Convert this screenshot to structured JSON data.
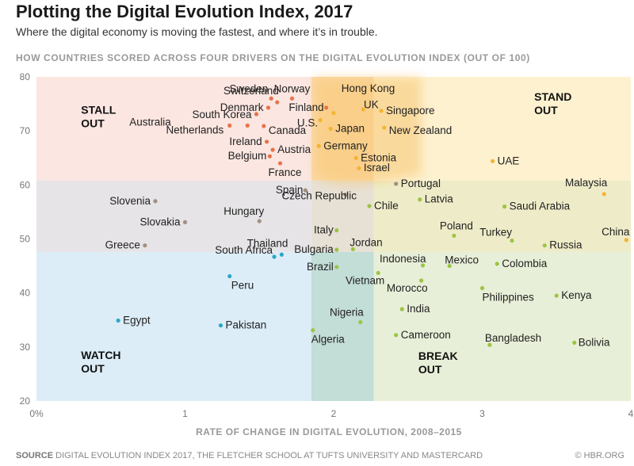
{
  "header": {
    "title": "Plotting the Digital Evolution Index, 2017",
    "subtitle": "Where the digital economy is moving the fastest, and where it’s in trouble."
  },
  "footer": {
    "source_label": "SOURCE",
    "source_text": "DIGITAL EVOLUTION INDEX 2017, THE FLETCHER SCHOOL AT TUFTS UNIVERSITY AND MASTERCARD",
    "credit": "© HBR.ORG"
  },
  "colors": {
    "stall_out": "#e8734a",
    "stand_out": "#f5b335",
    "break_out": "#9cc444",
    "watch_out": "#27a9c6",
    "transition": "#a09080",
    "stall_out_bg": "#fbe6e1",
    "stand_out_bg": "#fdf1cf",
    "break_out_bg": "#e8efd8",
    "watch_out_bg": "#dcedf8",
    "grey_bg": "#e6e4e6"
  },
  "chart_data": {
    "type": "scatter",
    "title": "HOW COUNTRIES SCORED ACROSS FOUR DRIVERS ON THE DIGITAL EVOLUTION INDEX (OUT OF 100)",
    "xlabel": "RATE OF CHANGE IN DIGITAL EVOLUTION, 2008–2015",
    "ylabel": "",
    "xlim": [
      0,
      4
    ],
    "ylim": [
      20,
      80
    ],
    "x_ticks": [
      "0%",
      "1",
      "2",
      "3",
      "4"
    ],
    "y_ticks": [
      "20",
      "30",
      "40",
      "50",
      "60",
      "70",
      "80"
    ],
    "quadrants": [
      {
        "name": "STALL OUT",
        "lines": [
          "STALL",
          "OUT"
        ]
      },
      {
        "name": "STAND OUT",
        "lines": [
          "STAND",
          "OUT"
        ]
      },
      {
        "name": "WATCH OUT",
        "lines": [
          "WATCH",
          "OUT"
        ]
      },
      {
        "name": "BREAK OUT",
        "lines": [
          "BREAK",
          "OUT"
        ]
      }
    ],
    "points": [
      {
        "label": "Sweden",
        "x": 1.58,
        "y": 76.0,
        "group": "stall_out"
      },
      {
        "label": "Switzerland",
        "x": 1.62,
        "y": 75.3,
        "group": "stall_out"
      },
      {
        "label": "Norway",
        "x": 1.72,
        "y": 76.0,
        "group": "stall_out"
      },
      {
        "label": "Hong Kong",
        "x": 2.2,
        "y": 74.0,
        "group": "stand_out"
      },
      {
        "label": "Denmark",
        "x": 1.56,
        "y": 74.3,
        "group": "stall_out"
      },
      {
        "label": "UK",
        "x": 2.0,
        "y": 73.3,
        "group": "stand_out"
      },
      {
        "label": "Singapore",
        "x": 2.32,
        "y": 73.7,
        "group": "stand_out"
      },
      {
        "label": "Finland",
        "x": 1.95,
        "y": 74.3,
        "group": "stall_out"
      },
      {
        "label": "South Korea",
        "x": 1.48,
        "y": 73.1,
        "group": "stall_out"
      },
      {
        "label": "Australia",
        "x": 1.3,
        "y": 71.0,
        "group": "stall_out"
      },
      {
        "label": "U.S.",
        "x": 1.91,
        "y": 72.0,
        "group": "stand_out"
      },
      {
        "label": "Japan",
        "x": 1.98,
        "y": 70.4,
        "group": "stand_out"
      },
      {
        "label": "New Zealand",
        "x": 2.34,
        "y": 70.6,
        "group": "stand_out"
      },
      {
        "label": "Netherlands",
        "x": 1.42,
        "y": 71.0,
        "group": "stall_out"
      },
      {
        "label": "Canada",
        "x": 1.53,
        "y": 70.9,
        "group": "stall_out"
      },
      {
        "label": "Germany",
        "x": 1.9,
        "y": 67.2,
        "group": "stand_out"
      },
      {
        "label": "Ireland",
        "x": 1.55,
        "y": 68.0,
        "group": "stall_out"
      },
      {
        "label": "Austria",
        "x": 1.59,
        "y": 66.5,
        "group": "stall_out"
      },
      {
        "label": "Belgium",
        "x": 1.57,
        "y": 65.3,
        "group": "stall_out"
      },
      {
        "label": "Estonia",
        "x": 2.15,
        "y": 65.0,
        "group": "stand_out"
      },
      {
        "label": "Israel",
        "x": 2.17,
        "y": 63.1,
        "group": "stand_out"
      },
      {
        "label": "UAE",
        "x": 3.07,
        "y": 64.4,
        "group": "stand_out"
      },
      {
        "label": "France",
        "x": 1.64,
        "y": 64.0,
        "group": "stall_out"
      },
      {
        "label": "Portugal",
        "x": 2.42,
        "y": 60.2,
        "group": "transition"
      },
      {
        "label": "Malaysia",
        "x": 3.82,
        "y": 58.3,
        "group": "stand_out"
      },
      {
        "label": "Spain",
        "x": 1.81,
        "y": 59.0,
        "group": "transition"
      },
      {
        "label": "Latvia",
        "x": 2.58,
        "y": 57.3,
        "group": "break_out"
      },
      {
        "label": "Slovenia",
        "x": 0.8,
        "y": 57.0,
        "group": "transition"
      },
      {
        "label": "Czech Republic",
        "x": 2.08,
        "y": 58.2,
        "group": "transition"
      },
      {
        "label": "Chile",
        "x": 2.24,
        "y": 56.1,
        "group": "break_out"
      },
      {
        "label": "Saudi Arabia",
        "x": 3.15,
        "y": 56.0,
        "group": "break_out"
      },
      {
        "label": "Hungary",
        "x": 1.5,
        "y": 53.3,
        "group": "transition"
      },
      {
        "label": "Slovakia",
        "x": 1.0,
        "y": 53.1,
        "group": "transition"
      },
      {
        "label": "Italy",
        "x": 2.02,
        "y": 51.6,
        "group": "break_out"
      },
      {
        "label": "Poland",
        "x": 2.81,
        "y": 50.6,
        "group": "break_out"
      },
      {
        "label": "Turkey",
        "x": 3.2,
        "y": 49.7,
        "group": "break_out"
      },
      {
        "label": "China",
        "x": 3.97,
        "y": 49.8,
        "group": "stand_out"
      },
      {
        "label": "Greece",
        "x": 0.73,
        "y": 48.8,
        "group": "transition"
      },
      {
        "label": "Jordan",
        "x": 2.13,
        "y": 48.1,
        "group": "break_out"
      },
      {
        "label": "Russia",
        "x": 3.42,
        "y": 48.8,
        "group": "break_out"
      },
      {
        "label": "Thailand",
        "x": 1.65,
        "y": 47.1,
        "group": "watch_out"
      },
      {
        "label": "Bulgaria",
        "x": 2.02,
        "y": 48.0,
        "group": "break_out"
      },
      {
        "label": "Indonesia",
        "x": 2.6,
        "y": 45.1,
        "group": "break_out"
      },
      {
        "label": "Mexico",
        "x": 2.78,
        "y": 45.0,
        "group": "break_out"
      },
      {
        "label": "Colombia",
        "x": 3.1,
        "y": 45.4,
        "group": "break_out"
      },
      {
        "label": "South Africa",
        "x": 1.6,
        "y": 46.7,
        "group": "watch_out"
      },
      {
        "label": "Brazil",
        "x": 2.02,
        "y": 44.8,
        "group": "break_out"
      },
      {
        "label": "Peru",
        "x": 1.3,
        "y": 43.1,
        "group": "watch_out"
      },
      {
        "label": "Vietnam",
        "x": 2.3,
        "y": 43.7,
        "group": "break_out"
      },
      {
        "label": "Morocco",
        "x": 2.59,
        "y": 42.3,
        "group": "break_out"
      },
      {
        "label": "Philippines",
        "x": 3.0,
        "y": 40.9,
        "group": "break_out"
      },
      {
        "label": "Kenya",
        "x": 3.5,
        "y": 39.5,
        "group": "break_out"
      },
      {
        "label": "India",
        "x": 2.46,
        "y": 37.0,
        "group": "break_out"
      },
      {
        "label": "Egypt",
        "x": 0.55,
        "y": 34.9,
        "group": "watch_out"
      },
      {
        "label": "Nigeria",
        "x": 2.18,
        "y": 34.6,
        "group": "break_out"
      },
      {
        "label": "Pakistan",
        "x": 1.24,
        "y": 34.0,
        "group": "watch_out"
      },
      {
        "label": "Algeria",
        "x": 1.86,
        "y": 33.1,
        "group": "break_out"
      },
      {
        "label": "Cameroon",
        "x": 2.42,
        "y": 32.2,
        "group": "break_out"
      },
      {
        "label": "Bangladesh",
        "x": 3.05,
        "y": 30.4,
        "group": "break_out"
      },
      {
        "label": "Bolivia",
        "x": 3.62,
        "y": 30.8,
        "group": "break_out"
      }
    ]
  }
}
